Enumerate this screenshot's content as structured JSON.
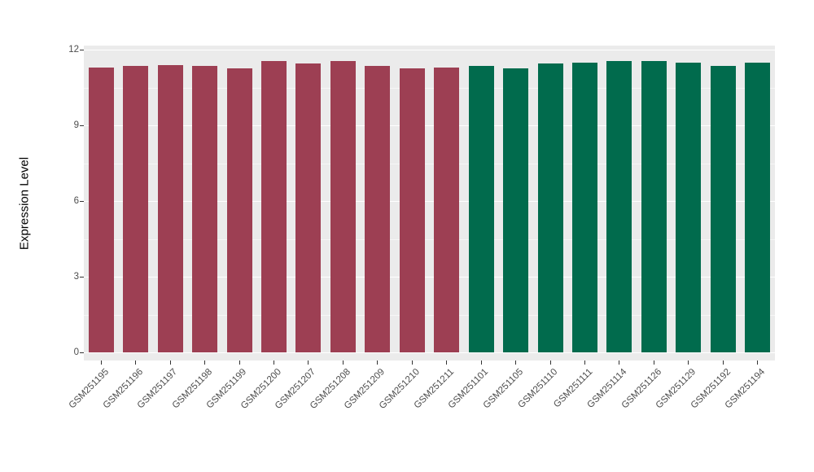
{
  "chart_data": {
    "type": "bar",
    "title": "",
    "xlabel": "",
    "ylabel": "Expression Level",
    "ylim": [
      0,
      12
    ],
    "yticks": [
      0,
      3,
      6,
      9,
      12
    ],
    "grid": "on",
    "legend": "none",
    "x_label_angle": 45,
    "panel_background": "#ebebeb",
    "gridline_color": "#ffffff",
    "tick_text_color": "#4d4d4d",
    "group_colors": [
      "#9d3f53",
      "#016b4d"
    ],
    "categories": [
      "GSM251195",
      "GSM251196",
      "GSM251197",
      "GSM251198",
      "GSM251199",
      "GSM251200",
      "GSM251207",
      "GSM251208",
      "GSM251209",
      "GSM251210",
      "GSM251211",
      "GSM251101",
      "GSM251105",
      "GSM251110",
      "GSM251111",
      "GSM251114",
      "GSM251126",
      "GSM251129",
      "GSM251192",
      "GSM251194"
    ],
    "values": [
      11.3,
      11.35,
      11.4,
      11.35,
      11.25,
      11.55,
      11.45,
      11.55,
      11.35,
      11.25,
      11.3,
      11.35,
      11.25,
      11.45,
      11.5,
      11.55,
      11.55,
      11.5,
      11.35,
      11.5
    ],
    "bar_colors": [
      "#9d3f53",
      "#9d3f53",
      "#9d3f53",
      "#9d3f53",
      "#9d3f53",
      "#9d3f53",
      "#9d3f53",
      "#9d3f53",
      "#9d3f53",
      "#9d3f53",
      "#9d3f53",
      "#016b4d",
      "#016b4d",
      "#016b4d",
      "#016b4d",
      "#016b4d",
      "#016b4d",
      "#016b4d",
      "#016b4d",
      "#016b4d"
    ]
  }
}
